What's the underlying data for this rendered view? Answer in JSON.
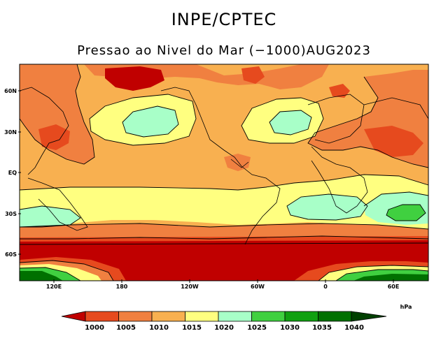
{
  "header": {
    "title": "INPE/CPTEC",
    "subtitle": "Pressao ao Nivel do Mar (−1000)AUG2023"
  },
  "map": {
    "y_axis_labels": [
      "60N",
      "30N",
      "EQ",
      "30S",
      "60S"
    ],
    "x_axis_labels": [
      "120E",
      "180",
      "120W",
      "60W",
      "0",
      "60E"
    ]
  },
  "colorbar": {
    "unit": "hPa",
    "levels": [
      "1000",
      "1005",
      "1010",
      "1015",
      "1020",
      "1025",
      "1030",
      "1035",
      "1040"
    ],
    "colors": [
      "#c00000",
      "#e64a1e",
      "#f08040",
      "#f8b050",
      "#ffff80",
      "#a8ffc8",
      "#40d040",
      "#10a010",
      "#007000",
      "#004000"
    ]
  },
  "fill_colors": {
    "lt1000": "#c00000",
    "c1000": "#e64a1e",
    "c1005": "#f08040",
    "c1010": "#f8b050",
    "c1015": "#ffff80",
    "c1020": "#a8ffc8",
    "c1025": "#40d040",
    "c1030": "#10a010",
    "c1035": "#007000"
  }
}
